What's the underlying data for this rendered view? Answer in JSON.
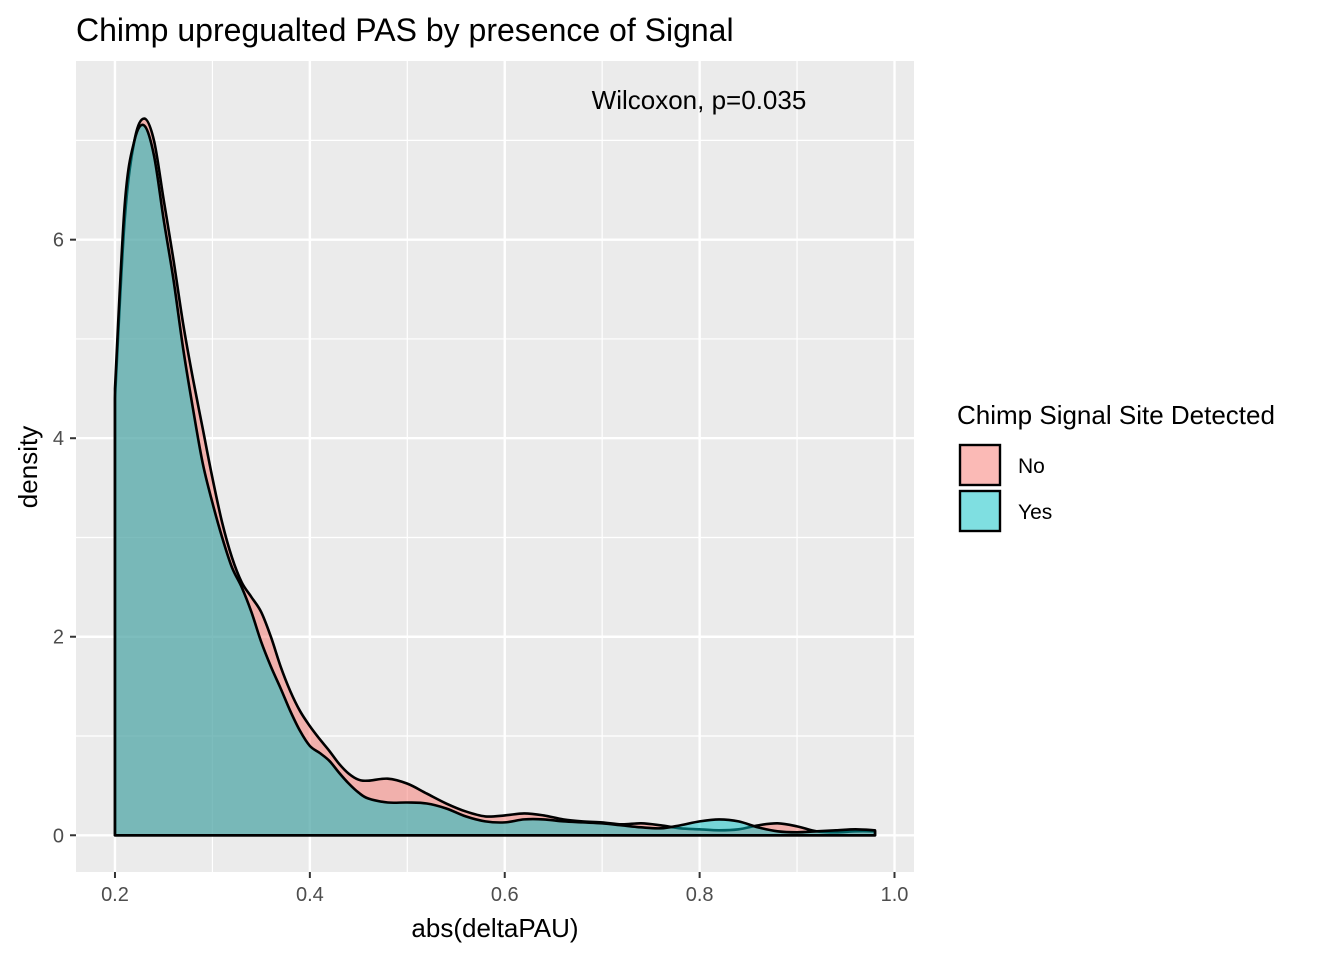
{
  "chart_data": {
    "type": "area",
    "title": "Chimp upregualted PAS by presence of Signal",
    "xlabel": "abs(deltaPAU)",
    "ylabel": "density",
    "xlim": [
      0.16,
      1.02
    ],
    "ylim": [
      -0.37,
      7.8
    ],
    "x_ticks": [
      0.2,
      0.4,
      0.6,
      0.8,
      1.0
    ],
    "x_tick_labels": [
      "0.2",
      "0.4",
      "0.6",
      "0.8",
      "1.0"
    ],
    "y_ticks": [
      0,
      2,
      4,
      6
    ],
    "y_tick_labels": [
      "0",
      "2",
      "4",
      "6"
    ],
    "grid": true,
    "legend": {
      "title": "Chimp Signal Site Detected",
      "position": "right"
    },
    "annotation": "Wilcoxon, p=0.035",
    "series": [
      {
        "name": "No",
        "color": "#F8766D",
        "points": [
          [
            0.2,
            0
          ],
          [
            0.2,
            4.4
          ],
          [
            0.21,
            6.2
          ],
          [
            0.22,
            7.0
          ],
          [
            0.23,
            7.22
          ],
          [
            0.24,
            7.0
          ],
          [
            0.25,
            6.4
          ],
          [
            0.26,
            5.8
          ],
          [
            0.27,
            5.15
          ],
          [
            0.28,
            4.6
          ],
          [
            0.29,
            4.1
          ],
          [
            0.3,
            3.6
          ],
          [
            0.31,
            3.15
          ],
          [
            0.32,
            2.8
          ],
          [
            0.33,
            2.55
          ],
          [
            0.34,
            2.4
          ],
          [
            0.35,
            2.25
          ],
          [
            0.36,
            2.0
          ],
          [
            0.37,
            1.7
          ],
          [
            0.38,
            1.45
          ],
          [
            0.39,
            1.25
          ],
          [
            0.4,
            1.1
          ],
          [
            0.41,
            0.97
          ],
          [
            0.42,
            0.85
          ],
          [
            0.43,
            0.72
          ],
          [
            0.44,
            0.62
          ],
          [
            0.45,
            0.56
          ],
          [
            0.46,
            0.55
          ],
          [
            0.48,
            0.57
          ],
          [
            0.5,
            0.52
          ],
          [
            0.52,
            0.42
          ],
          [
            0.54,
            0.32
          ],
          [
            0.56,
            0.24
          ],
          [
            0.58,
            0.19
          ],
          [
            0.6,
            0.2
          ],
          [
            0.62,
            0.22
          ],
          [
            0.64,
            0.2
          ],
          [
            0.66,
            0.16
          ],
          [
            0.68,
            0.14
          ],
          [
            0.7,
            0.13
          ],
          [
            0.72,
            0.11
          ],
          [
            0.74,
            0.12
          ],
          [
            0.76,
            0.1
          ],
          [
            0.78,
            0.07
          ],
          [
            0.8,
            0.06
          ],
          [
            0.82,
            0.05
          ],
          [
            0.84,
            0.06
          ],
          [
            0.86,
            0.1
          ],
          [
            0.88,
            0.12
          ],
          [
            0.9,
            0.09
          ],
          [
            0.92,
            0.04
          ],
          [
            0.94,
            0.03
          ],
          [
            0.96,
            0.04
          ],
          [
            0.98,
            0.04
          ],
          [
            0.98,
            0
          ]
        ]
      },
      {
        "name": "Yes",
        "color": "#00BFC4",
        "points": [
          [
            0.2,
            0
          ],
          [
            0.2,
            4.5
          ],
          [
            0.21,
            6.35
          ],
          [
            0.22,
            7.0
          ],
          [
            0.23,
            7.15
          ],
          [
            0.24,
            6.85
          ],
          [
            0.25,
            6.2
          ],
          [
            0.26,
            5.6
          ],
          [
            0.27,
            4.9
          ],
          [
            0.28,
            4.3
          ],
          [
            0.29,
            3.75
          ],
          [
            0.3,
            3.35
          ],
          [
            0.31,
            3.0
          ],
          [
            0.32,
            2.7
          ],
          [
            0.33,
            2.5
          ],
          [
            0.34,
            2.25
          ],
          [
            0.35,
            1.95
          ],
          [
            0.36,
            1.7
          ],
          [
            0.37,
            1.48
          ],
          [
            0.38,
            1.25
          ],
          [
            0.39,
            1.05
          ],
          [
            0.4,
            0.9
          ],
          [
            0.41,
            0.83
          ],
          [
            0.42,
            0.75
          ],
          [
            0.43,
            0.63
          ],
          [
            0.44,
            0.52
          ],
          [
            0.45,
            0.43
          ],
          [
            0.46,
            0.37
          ],
          [
            0.48,
            0.33
          ],
          [
            0.5,
            0.33
          ],
          [
            0.52,
            0.32
          ],
          [
            0.54,
            0.27
          ],
          [
            0.56,
            0.19
          ],
          [
            0.58,
            0.14
          ],
          [
            0.6,
            0.13
          ],
          [
            0.62,
            0.16
          ],
          [
            0.64,
            0.16
          ],
          [
            0.66,
            0.14
          ],
          [
            0.68,
            0.13
          ],
          [
            0.7,
            0.12
          ],
          [
            0.72,
            0.1
          ],
          [
            0.74,
            0.08
          ],
          [
            0.76,
            0.07
          ],
          [
            0.78,
            0.1
          ],
          [
            0.8,
            0.14
          ],
          [
            0.82,
            0.16
          ],
          [
            0.84,
            0.14
          ],
          [
            0.86,
            0.08
          ],
          [
            0.88,
            0.04
          ],
          [
            0.9,
            0.03
          ],
          [
            0.92,
            0.04
          ],
          [
            0.94,
            0.05
          ],
          [
            0.96,
            0.06
          ],
          [
            0.98,
            0.05
          ],
          [
            0.98,
            0
          ]
        ]
      }
    ]
  }
}
